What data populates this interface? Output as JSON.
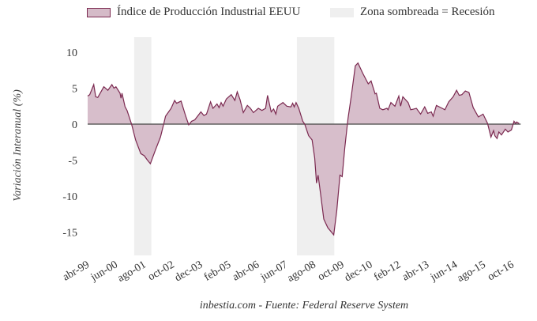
{
  "chart_data": {
    "type": "area",
    "title": "",
    "xlabel": "",
    "ylabel": "Variación Interanual (%)",
    "x_unit": "months since abr-99",
    "xlim": [
      0,
      214
    ],
    "ylim": [
      -18,
      12
    ],
    "y_ticks": [
      10,
      5,
      0,
      -5,
      -10,
      -15
    ],
    "x_ticks": [
      {
        "x": 0,
        "label": "abr-99"
      },
      {
        "x": 14,
        "label": "jun-00"
      },
      {
        "x": 28,
        "label": "ago-01"
      },
      {
        "x": 42,
        "label": "oct-02"
      },
      {
        "x": 56,
        "label": "dec-03"
      },
      {
        "x": 70,
        "label": "feb-05"
      },
      {
        "x": 84,
        "label": "abr-06"
      },
      {
        "x": 98,
        "label": "jun-07"
      },
      {
        "x": 112,
        "label": "ago-08"
      },
      {
        "x": 126,
        "label": "oct-09"
      },
      {
        "x": 140,
        "label": "dec-10"
      },
      {
        "x": 154,
        "label": "feb-12"
      },
      {
        "x": 168,
        "label": "abr-13"
      },
      {
        "x": 182,
        "label": "jun-14"
      },
      {
        "x": 196,
        "label": "ago-15"
      },
      {
        "x": 210,
        "label": "oct-16"
      }
    ],
    "legend": {
      "placement": "top",
      "series_label": "Índice de Producción Industrial EEUU",
      "recession_label": "Zona sombreada = Recesión"
    },
    "recessions": [
      [
        23,
        31.5
      ],
      [
        103.5,
        122
      ]
    ],
    "series": [
      {
        "name": "Índice de Producción Industrial EEUU",
        "color": "#7b2950",
        "fill": "#d5bbc8",
        "points": [
          [
            0,
            3.9
          ],
          [
            1,
            4.1
          ],
          [
            3,
            5.5
          ],
          [
            4,
            3.8
          ],
          [
            5,
            3.7
          ],
          [
            8,
            5.2
          ],
          [
            10,
            4.7
          ],
          [
            12,
            5.5
          ],
          [
            13,
            5.0
          ],
          [
            14,
            5.2
          ],
          [
            16,
            4.3
          ],
          [
            16.5,
            3.6
          ],
          [
            17,
            4.3
          ],
          [
            18.5,
            2.4
          ],
          [
            19.5,
            1.9
          ],
          [
            21.7,
            0
          ],
          [
            23.7,
            -2.2
          ],
          [
            26.3,
            -4.1
          ],
          [
            28,
            -4.4
          ],
          [
            29.3,
            -4.9
          ],
          [
            31,
            -5.5
          ],
          [
            33.5,
            -3.6
          ],
          [
            36,
            -1.8
          ],
          [
            37.6,
            0
          ],
          [
            38.5,
            1.1
          ],
          [
            41.3,
            2.2
          ],
          [
            43,
            3.3
          ],
          [
            44,
            2.9
          ],
          [
            46.2,
            3.2
          ],
          [
            48.5,
            1.1
          ],
          [
            50,
            -0.1
          ],
          [
            51.4,
            0.4
          ],
          [
            53,
            0.6
          ],
          [
            56,
            1.7
          ],
          [
            57.5,
            1.2
          ],
          [
            58.8,
            1.4
          ],
          [
            60.8,
            3.1
          ],
          [
            62,
            2.2
          ],
          [
            64,
            2.8
          ],
          [
            65,
            2.3
          ],
          [
            66,
            3.0
          ],
          [
            67,
            2.5
          ],
          [
            68.6,
            3.5
          ],
          [
            71,
            4.1
          ],
          [
            72.8,
            3.3
          ],
          [
            74,
            4.5
          ],
          [
            75.4,
            3.4
          ],
          [
            77,
            1.6
          ],
          [
            79,
            2.6
          ],
          [
            80.5,
            2.2
          ],
          [
            82,
            1.6
          ],
          [
            84.4,
            2.2
          ],
          [
            86.2,
            1.9
          ],
          [
            88,
            2.2
          ],
          [
            89,
            4.0
          ],
          [
            90.8,
            1.7
          ],
          [
            92,
            2.1
          ],
          [
            93.1,
            1.4
          ],
          [
            94,
            2.5
          ],
          [
            96.6,
            3.0
          ],
          [
            98.5,
            2.5
          ],
          [
            100.5,
            2.4
          ],
          [
            101.4,
            2.9
          ],
          [
            102.2,
            2.4
          ],
          [
            103.1,
            3.0
          ],
          [
            104.4,
            2.2
          ],
          [
            106.4,
            0.4
          ],
          [
            107.4,
            0
          ],
          [
            109.3,
            -1.6
          ],
          [
            111,
            -2.2
          ],
          [
            112.3,
            -4.7
          ],
          [
            113.2,
            -8.2
          ],
          [
            114,
            -7.1
          ],
          [
            115.3,
            -9.9
          ],
          [
            116.8,
            -13.2
          ],
          [
            118.8,
            -14.4
          ],
          [
            121.7,
            -15.4
          ],
          [
            123.2,
            -12.1
          ],
          [
            124.8,
            -7.1
          ],
          [
            125.9,
            -7.3
          ],
          [
            127.2,
            -3.3
          ],
          [
            128.8,
            0.8
          ],
          [
            130.5,
            4.1
          ],
          [
            132.4,
            8.1
          ],
          [
            133.7,
            8.5
          ],
          [
            136,
            7.1
          ],
          [
            138.8,
            5.6
          ],
          [
            140.2,
            6.0
          ],
          [
            142.2,
            4.2
          ],
          [
            142.8,
            4.3
          ],
          [
            144.5,
            2.2
          ],
          [
            146,
            2.0
          ],
          [
            148,
            2.2
          ],
          [
            148.6,
            2.0
          ],
          [
            150,
            3.0
          ],
          [
            152,
            2.5
          ],
          [
            153.9,
            3.9
          ],
          [
            154.8,
            2.5
          ],
          [
            155.9,
            3.8
          ],
          [
            158.5,
            3.0
          ],
          [
            159.8,
            2.0
          ],
          [
            161.3,
            2.1
          ],
          [
            162.6,
            2.2
          ],
          [
            164.7,
            1.4
          ],
          [
            166.7,
            2.4
          ],
          [
            168.2,
            1.5
          ],
          [
            170,
            1.7
          ],
          [
            170.9,
            1.1
          ],
          [
            172.5,
            2.6
          ],
          [
            174.7,
            2.3
          ],
          [
            176.7,
            2.0
          ],
          [
            178.6,
            3.1
          ],
          [
            180.8,
            3.8
          ],
          [
            182.5,
            4.7
          ],
          [
            183.8,
            4.0
          ],
          [
            185.1,
            4.1
          ],
          [
            186.8,
            4.6
          ],
          [
            188.6,
            4.4
          ],
          [
            190.7,
            2.3
          ],
          [
            193.3,
            1.0
          ],
          [
            195.6,
            1.4
          ],
          [
            197.8,
            0.1
          ],
          [
            199.5,
            -1.8
          ],
          [
            200.8,
            -0.9
          ],
          [
            201.4,
            -1.6
          ],
          [
            202.5,
            -2.0
          ],
          [
            203.4,
            -1.1
          ],
          [
            204.7,
            -1.5
          ],
          [
            206.6,
            -0.7
          ],
          [
            207.9,
            -1.1
          ],
          [
            209.6,
            -0.8
          ],
          [
            210.9,
            0.4
          ],
          [
            211.6,
            0.1
          ],
          [
            212.2,
            0.3
          ],
          [
            213.4,
            0.1
          ]
        ]
      }
    ],
    "recession_color": "#efefef",
    "grid": false,
    "source": "inbestia.com - Fuente: Federal Reserve System"
  }
}
